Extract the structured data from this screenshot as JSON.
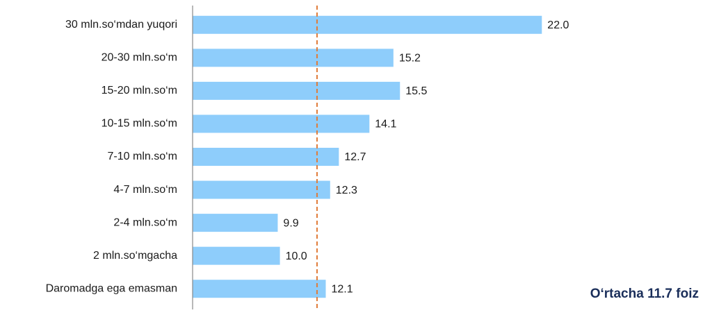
{
  "chart_data": {
    "type": "barh",
    "categories": [
      "30 mln.so‘mdan yuqori",
      "20-30 mln.so‘m",
      "15-20 mln.so‘m",
      "10-15 mln.so‘m",
      "7-10 mln.so‘m",
      "4-7 mln.so‘m",
      "2-4 mln.so‘m",
      "2 mln.so‘mgacha",
      "Daromadga ega emasman"
    ],
    "values": [
      22.0,
      15.2,
      15.5,
      14.1,
      12.7,
      12.3,
      9.9,
      10.0,
      12.1
    ],
    "value_labels": [
      "22.0",
      "15.2",
      "15.5",
      "14.1",
      "12.7",
      "12.3",
      "9.9",
      "10.0",
      "12.1"
    ],
    "color": "#8ecdfb",
    "xlim": [
      6,
      22.5
    ],
    "average": 11.7,
    "average_color": "#e07b39",
    "annotation": "O‘rtacha 11.7 foiz"
  }
}
